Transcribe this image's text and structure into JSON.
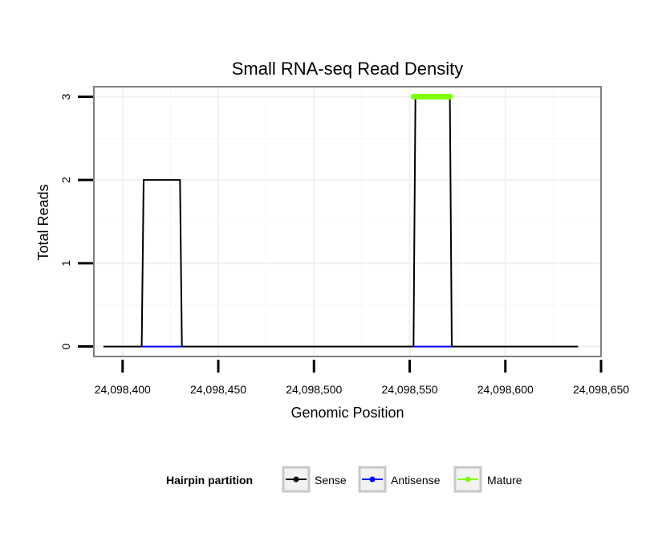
{
  "chart_data": {
    "type": "line",
    "title": "Small RNA-seq Read Density",
    "xlabel": "Genomic Position",
    "ylabel": "Total Reads",
    "xlim": [
      24098385,
      24098650
    ],
    "ylim": [
      -0.12,
      3.12
    ],
    "x_ticks": [
      24098400,
      24098450,
      24098500,
      24098550,
      24098600,
      24098650
    ],
    "x_tick_labels": [
      "24,098,400",
      "24,098,450",
      "24,098,500",
      "24,098,550",
      "24,098,600",
      "24,098,650"
    ],
    "y_ticks": [
      0,
      1,
      2,
      3
    ],
    "y_tick_labels": [
      "0",
      "1",
      "2",
      "3"
    ],
    "grid": true,
    "legend": {
      "title": "Hairpin partition",
      "position": "bottom",
      "entries": [
        {
          "name": "Sense",
          "color": "#000000"
        },
        {
          "name": "Antisense",
          "color": "#0000ff"
        },
        {
          "name": "Mature",
          "color": "#7fff00"
        }
      ]
    },
    "series": [
      {
        "name": "Sense",
        "color": "#000000",
        "x": [
          24098390,
          24098410,
          24098411,
          24098430,
          24098431,
          24098552,
          24098553,
          24098571,
          24098572,
          24098638
        ],
        "y": [
          0,
          0,
          2,
          2,
          0,
          0,
          3,
          3,
          0,
          0
        ]
      },
      {
        "name": "Antisense",
        "color": "#0000ff",
        "x": [
          24098410,
          24098431
        ],
        "y": [
          0,
          0
        ]
      },
      {
        "name": "Antisense",
        "color": "#0000ff",
        "x": [
          24098552,
          24098572
        ],
        "y": [
          0,
          0
        ]
      },
      {
        "name": "Mature",
        "color": "#7fff00",
        "x": [
          24098552,
          24098571
        ],
        "y": [
          3,
          3
        ]
      }
    ]
  }
}
